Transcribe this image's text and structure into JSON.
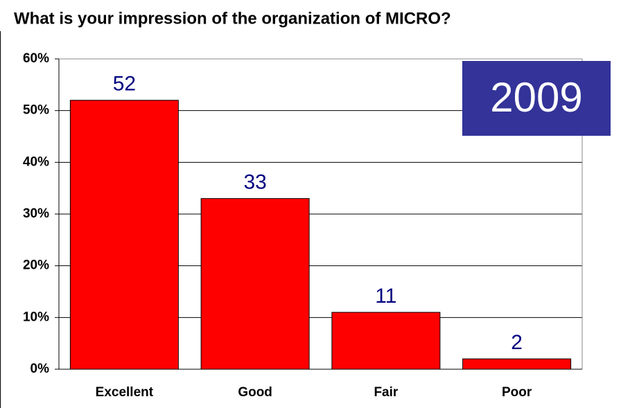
{
  "chart_data": {
    "type": "bar",
    "title": "What is your impression of the organization of MICRO?",
    "annotation": "2009",
    "categories": [
      "Excellent",
      "Good",
      "Fair",
      "Poor"
    ],
    "values": [
      52,
      33,
      11,
      2
    ],
    "color": "#ff0000",
    "ylim": [
      0,
      60
    ],
    "yticks": [
      {
        "value": 0,
        "label": "0%"
      },
      {
        "value": 10,
        "label": "10%"
      },
      {
        "value": 20,
        "label": "20%"
      },
      {
        "value": 30,
        "label": "30%"
      },
      {
        "value": 40,
        "label": "40%"
      },
      {
        "value": 50,
        "label": "50%"
      },
      {
        "value": 60,
        "label": "60%"
      }
    ],
    "grid": true
  }
}
